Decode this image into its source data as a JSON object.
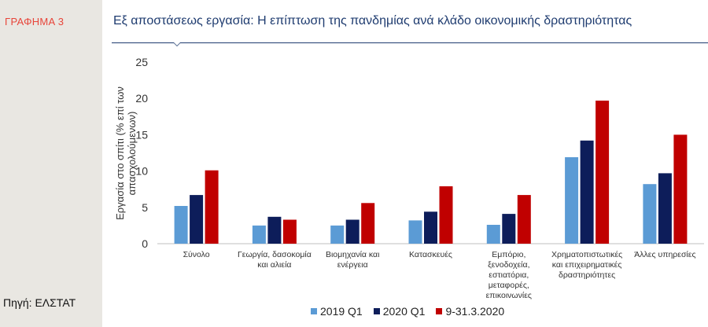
{
  "figure_label": "ΓΡΑΦΗΜΑ  3",
  "source": "Πηγή: ΕΛΣΤΑΤ",
  "chart_data": {
    "type": "bar",
    "title": "Εξ αποστάσεως εργασία: Η επίπτωση της πανδημίας ανά κλάδο οικονομικής δραστηριότητας",
    "xlabel": "",
    "ylabel_lines": [
      "Εργασία στο σπίτι (% επί των",
      "απασχολούμενων)"
    ],
    "ylim": [
      0,
      25
    ],
    "yticks": [
      0,
      5,
      10,
      15,
      20,
      25
    ],
    "categories": [
      [
        "Σύνολο"
      ],
      [
        "Γεωργία, δασοκομία",
        "και αλιεία"
      ],
      [
        "Βιομηχανία και",
        "ενέργεια"
      ],
      [
        "Κατασκευές"
      ],
      [
        "Εμπόριο,",
        "ξενοδοχεία,",
        "εστιατόρια,",
        "μεταφορές,",
        "επικοινωνίες"
      ],
      [
        "Χρηματοπιστωτικές",
        "και επιχειρηματικές",
        "δραστηριότητες"
      ],
      [
        "Άλλες υπηρεσίες"
      ]
    ],
    "series": [
      {
        "name": "2019 Q1",
        "color": "#5b9bd5",
        "values": [
          5.2,
          2.5,
          2.5,
          3.2,
          2.6,
          11.9,
          8.2
        ]
      },
      {
        "name": "2020 Q1",
        "color": "#0d1d5a",
        "values": [
          6.7,
          3.7,
          3.3,
          4.4,
          4.1,
          14.2,
          9.7
        ]
      },
      {
        "name": "9-31.3.2020",
        "color": "#c00000",
        "values": [
          10.1,
          3.3,
          5.6,
          7.9,
          6.7,
          19.7,
          15.0
        ]
      }
    ],
    "legend_position": "bottom"
  }
}
